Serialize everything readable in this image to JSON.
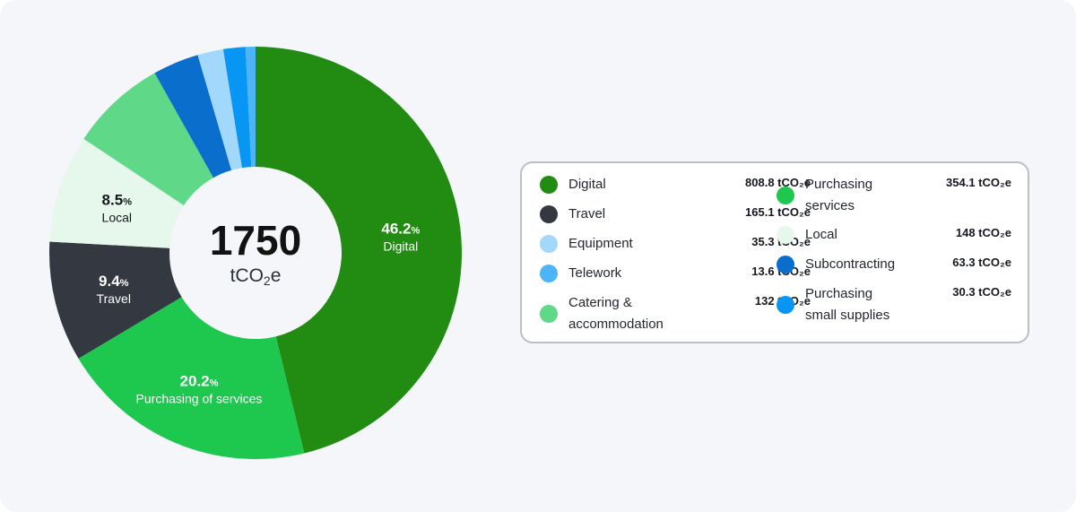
{
  "center": {
    "total": "1750",
    "unit_prefix": "tCO",
    "unit_sub": "2",
    "unit_suffix": "e"
  },
  "legend": {
    "left": [
      {
        "name_lines": [
          "Digital"
        ],
        "value": "808.8 tCO₂e",
        "color": "#228b12"
      },
      {
        "name_lines": [
          "Travel"
        ],
        "value": "165.1 tCO₂e",
        "color": "#343841"
      },
      {
        "name_lines": [
          "Equipment"
        ],
        "value": "35.3 tCO₂e",
        "color": "#a3d8fd"
      },
      {
        "name_lines": [
          "Telework"
        ],
        "value": "13.6 tCO₂e",
        "color": "#4db5f7"
      },
      {
        "name_lines": [
          "Catering &",
          "accommodation"
        ],
        "value": "132 tCO₂e",
        "color": "#5fd988"
      }
    ],
    "right": [
      {
        "name_lines": [
          "Purchasing",
          "services"
        ],
        "value": "354.1 tCO₂e",
        "color": "#1ec74e"
      },
      {
        "name_lines": [
          "Local"
        ],
        "value": "148 tCO₂e",
        "color": "#e6f7eb"
      },
      {
        "name_lines": [
          "Subcontracting"
        ],
        "value": "63.3 tCO₂e",
        "color": "#0a6ecc"
      },
      {
        "name_lines": [
          "Purchasing",
          "small supplies"
        ],
        "value": "30.3 tCO₂e",
        "color": "#0896f5"
      }
    ]
  },
  "chart_data": {
    "type": "pie",
    "title": "",
    "total": 1750,
    "unit": "tCO₂e",
    "slices": [
      {
        "name": "Digital",
        "value": 808.8,
        "color": "#228b12",
        "label_pct": "46.2",
        "label_name": "Digital"
      },
      {
        "name": "Purchasing of services",
        "value": 354.1,
        "color": "#1ec74e",
        "label_pct": "20.2",
        "label_name": "Purchasing of services"
      },
      {
        "name": "Travel",
        "value": 165.1,
        "color": "#343841",
        "label_pct": "9.4",
        "label_name": "Travel"
      },
      {
        "name": "Local",
        "value": 148,
        "color": "#e6f7eb",
        "label_pct": "8.5",
        "label_name": "Local"
      },
      {
        "name": "Catering & accommodation",
        "value": 132,
        "color": "#5fd988"
      },
      {
        "name": "Subcontracting",
        "value": 63.3,
        "color": "#0a6ecc"
      },
      {
        "name": "Equipment",
        "value": 35.3,
        "color": "#a3d8fd"
      },
      {
        "name": "Purchasing small supplies",
        "value": 30.3,
        "color": "#0896f5"
      },
      {
        "name": "Telework",
        "value": 13.6,
        "color": "#4db5f7"
      }
    ]
  }
}
